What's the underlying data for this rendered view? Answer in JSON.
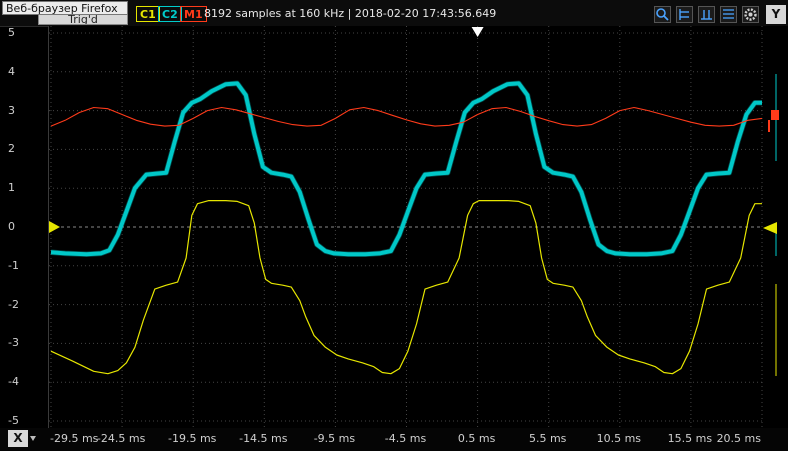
{
  "window": {
    "tooltip_text": "Веб-браузер Firefox",
    "trigger_label": "Trig'd"
  },
  "header": {
    "channels": [
      {
        "label": "C1",
        "color": "#e6e600"
      },
      {
        "label": "C2",
        "color": "#00cccc"
      },
      {
        "label": "M1",
        "color": "#ff3b1a"
      }
    ],
    "acquisition": "8192 samples at 160 kHz | 2018-02-20 17:43:56.649",
    "tool_icons": [
      "zoom-icon",
      "cursor-h-icon",
      "cursor-v-icon",
      "measure-icon",
      "settings-icon"
    ],
    "y_button": "Y"
  },
  "footer": {
    "x_button": "X"
  },
  "chart_data": {
    "type": "line",
    "yticks": [
      "5",
      "4",
      "3",
      "2",
      "1",
      "0",
      "-1",
      "-2",
      "-3",
      "-4",
      "-5"
    ],
    "xticks": [
      "-29.5 ms",
      "-24.5 ms",
      "-19.5 ms",
      "-14.5 ms",
      "-9.5 ms",
      "-4.5 ms",
      "0.5 ms",
      "5.5 ms",
      "10.5 ms",
      "15.5 ms",
      "20.5 ms"
    ],
    "xlim": [
      -29.5,
      20.5
    ],
    "ylim": [
      -5,
      5
    ],
    "grid": true,
    "trigger_marker_x": 0.5,
    "series": [
      {
        "color": "#e6e600",
        "width": 1.2,
        "x": [
          -29.5,
          -28.0,
          -26.5,
          -25.5,
          -24.8,
          -24.2,
          -23.6,
          -23.0,
          -22.2,
          -21.4,
          -20.6,
          -20.0,
          -19.6,
          -19.2,
          -18.4,
          -17.2,
          -16.4,
          -15.6,
          -15.2,
          -14.8,
          -14.4,
          -14.0,
          -13.2,
          -12.6,
          -12.0,
          -11.6,
          -11.0,
          -10.2,
          -9.4,
          -8.6,
          -7.6,
          -6.8,
          -6.2,
          -5.6,
          -5.0,
          -4.4,
          -3.8,
          -3.2,
          -2.4,
          -1.6,
          -0.8,
          -0.2,
          0.2,
          0.6,
          1.4,
          2.6,
          3.4,
          4.2,
          4.6,
          5.0,
          5.4,
          5.8,
          6.6,
          7.2,
          7.8,
          8.2,
          8.8,
          9.6,
          10.4,
          11.2,
          12.2,
          13.0,
          13.6,
          14.2,
          14.8,
          15.4,
          16.0,
          16.6,
          17.4,
          18.2,
          19.0,
          19.6,
          20.0,
          20.5
        ],
        "y": [
          -3.2,
          -3.45,
          -3.72,
          -3.78,
          -3.7,
          -3.5,
          -3.1,
          -2.4,
          -1.6,
          -1.5,
          -1.42,
          -0.8,
          0.3,
          0.6,
          0.68,
          0.68,
          0.66,
          0.55,
          0.1,
          -0.8,
          -1.35,
          -1.45,
          -1.5,
          -1.55,
          -1.9,
          -2.3,
          -2.8,
          -3.1,
          -3.3,
          -3.4,
          -3.5,
          -3.6,
          -3.75,
          -3.78,
          -3.65,
          -3.2,
          -2.5,
          -1.6,
          -1.5,
          -1.42,
          -0.8,
          0.3,
          0.6,
          0.68,
          0.68,
          0.68,
          0.66,
          0.55,
          0.1,
          -0.8,
          -1.35,
          -1.45,
          -1.5,
          -1.55,
          -1.9,
          -2.3,
          -2.8,
          -3.1,
          -3.3,
          -3.4,
          -3.5,
          -3.6,
          -3.75,
          -3.78,
          -3.65,
          -3.2,
          -2.5,
          -1.6,
          -1.5,
          -1.42,
          -0.8,
          0.3,
          0.6,
          0.6
        ]
      },
      {
        "color": "#00c8c8",
        "width": 4,
        "x": [
          -29.5,
          -28.5,
          -27.0,
          -26.0,
          -25.4,
          -24.8,
          -24.2,
          -23.6,
          -22.8,
          -22.0,
          -21.4,
          -20.8,
          -20.2,
          -19.6,
          -19.0,
          -18.2,
          -17.2,
          -16.4,
          -15.8,
          -15.2,
          -14.6,
          -14.0,
          -13.2,
          -12.6,
          -12.0,
          -11.4,
          -10.8,
          -10.2,
          -9.6,
          -8.6,
          -7.4,
          -6.4,
          -5.6,
          -5.0,
          -4.4,
          -3.8,
          -3.2,
          -2.4,
          -1.6,
          -1.0,
          -0.4,
          0.2,
          0.8,
          1.6,
          2.6,
          3.4,
          4.0,
          4.6,
          5.2,
          5.8,
          6.6,
          7.2,
          7.8,
          8.4,
          9.0,
          9.6,
          10.2,
          11.2,
          12.4,
          13.4,
          14.2,
          14.8,
          15.4,
          16.0,
          16.6,
          17.4,
          18.2,
          18.8,
          19.4,
          20.0,
          20.5
        ],
        "y": [
          -0.65,
          -0.68,
          -0.7,
          -0.68,
          -0.6,
          -0.2,
          0.4,
          1.0,
          1.35,
          1.38,
          1.4,
          2.2,
          2.95,
          3.2,
          3.3,
          3.5,
          3.68,
          3.7,
          3.4,
          2.4,
          1.55,
          1.4,
          1.35,
          1.3,
          0.9,
          0.2,
          -0.45,
          -0.62,
          -0.68,
          -0.7,
          -0.7,
          -0.68,
          -0.62,
          -0.2,
          0.4,
          1.0,
          1.35,
          1.38,
          1.4,
          2.2,
          2.95,
          3.2,
          3.3,
          3.5,
          3.68,
          3.7,
          3.4,
          2.4,
          1.55,
          1.4,
          1.35,
          1.3,
          0.9,
          0.2,
          -0.45,
          -0.62,
          -0.68,
          -0.7,
          -0.7,
          -0.68,
          -0.62,
          -0.2,
          0.4,
          1.0,
          1.35,
          1.38,
          1.4,
          2.2,
          2.9,
          3.2,
          3.2
        ]
      },
      {
        "color": "#ff3b1a",
        "width": 1.1,
        "x": [
          -29.5,
          -28.5,
          -27.5,
          -26.5,
          -25.5,
          -24.5,
          -23.5,
          -22.5,
          -21.5,
          -20.5,
          -19.5,
          -18.5,
          -17.5,
          -16.5,
          -15.5,
          -14.5,
          -13.5,
          -12.5,
          -11.5,
          -10.5,
          -9.5,
          -8.5,
          -7.5,
          -6.5,
          -5.5,
          -4.5,
          -3.5,
          -2.5,
          -1.5,
          -0.5,
          0.5,
          1.5,
          2.5,
          3.5,
          4.5,
          5.5,
          6.5,
          7.5,
          8.5,
          9.5,
          10.5,
          11.5,
          12.5,
          13.5,
          14.5,
          15.5,
          16.5,
          17.5,
          18.5,
          19.5,
          20.5
        ],
        "y": [
          2.6,
          2.75,
          2.95,
          3.08,
          3.05,
          2.9,
          2.75,
          2.65,
          2.6,
          2.62,
          2.8,
          3.0,
          3.08,
          3.02,
          2.92,
          2.82,
          2.72,
          2.64,
          2.6,
          2.62,
          2.8,
          3.02,
          3.08,
          3.0,
          2.88,
          2.76,
          2.66,
          2.6,
          2.62,
          2.7,
          2.9,
          3.05,
          3.08,
          2.98,
          2.85,
          2.74,
          2.64,
          2.6,
          2.64,
          2.8,
          3.0,
          3.08,
          3.0,
          2.9,
          2.8,
          2.7,
          2.62,
          2.6,
          2.62,
          2.75,
          2.8
        ]
      }
    ]
  }
}
